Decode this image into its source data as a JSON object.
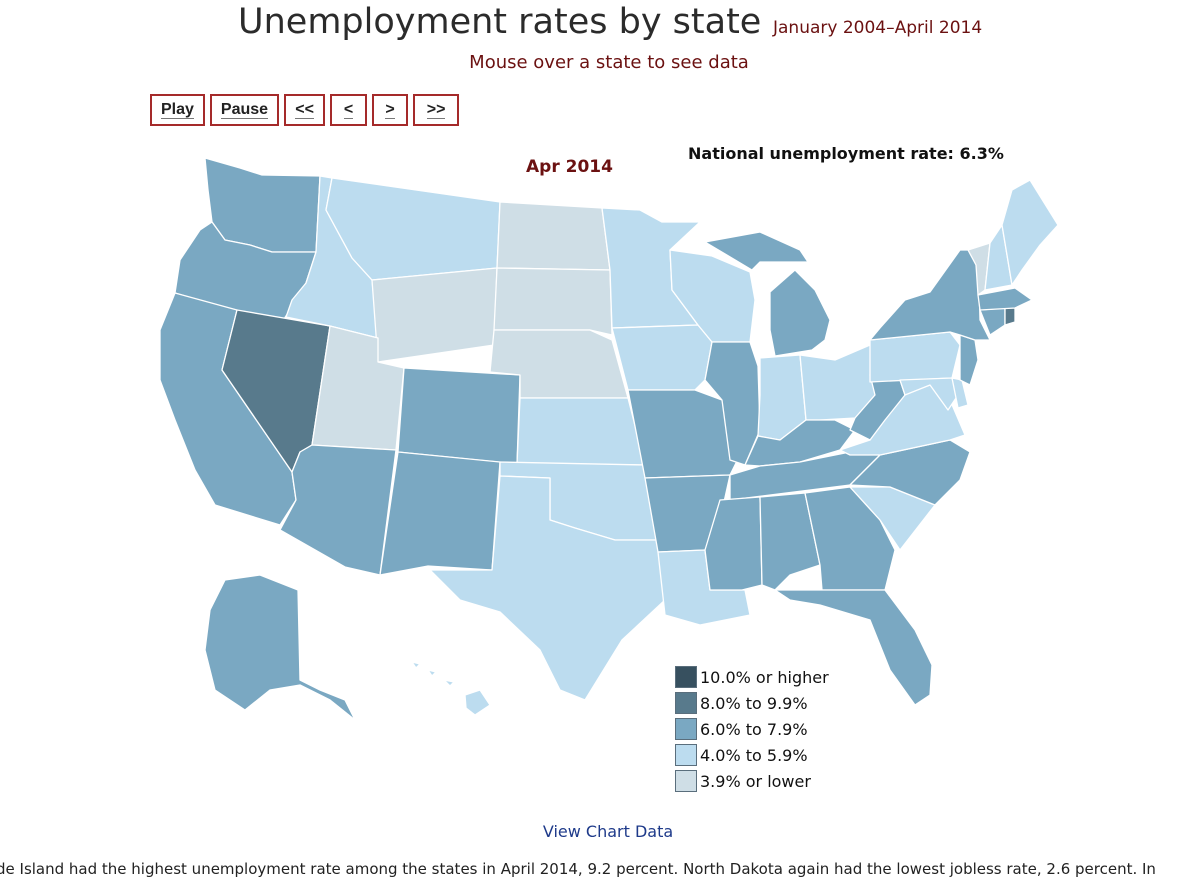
{
  "header": {
    "title": "Unemployment rates by state",
    "date_range": "January 2004–April 2014",
    "instruction": "Mouse over a state to see data"
  },
  "controls": [
    {
      "name": "play-button",
      "label": "Play"
    },
    {
      "name": "pause-button",
      "label": "Pause"
    },
    {
      "name": "first-button",
      "label": "<<"
    },
    {
      "name": "previous-button",
      "label": "<"
    },
    {
      "name": "next-button",
      "label": ">"
    },
    {
      "name": "last-button",
      "label": ">>"
    }
  ],
  "map": {
    "current_month": "Apr 2014",
    "national_rate": "National unemployment rate: 6.3%",
    "colors": {
      "10_plus": "#37505f",
      "8_to_9_9": "#587a8c",
      "6_to_7_9": "#7aa8c2",
      "4_to_5_9": "#bcdcef",
      "3_9_lower": "#cfdee6"
    },
    "state_classes": {
      "WA": "6_to_7_9",
      "OR": "6_to_7_9",
      "CA": "6_to_7_9",
      "NV": "8_to_9_9",
      "ID": "4_to_5_9",
      "MT": "4_to_5_9",
      "WY": "3_9_lower",
      "UT": "3_9_lower",
      "AZ": "6_to_7_9",
      "CO": "6_to_7_9",
      "NM": "6_to_7_9",
      "ND": "3_9_lower",
      "SD": "3_9_lower",
      "NE": "3_9_lower",
      "KS": "4_to_5_9",
      "OK": "4_to_5_9",
      "TX": "4_to_5_9",
      "MN": "4_to_5_9",
      "IA": "4_to_5_9",
      "MO": "6_to_7_9",
      "AR": "6_to_7_9",
      "LA": "4_to_5_9",
      "WI": "4_to_5_9",
      "IL": "6_to_7_9",
      "MI": "6_to_7_9",
      "IN": "4_to_5_9",
      "OH": "4_to_5_9",
      "KY": "6_to_7_9",
      "TN": "6_to_7_9",
      "MS": "6_to_7_9",
      "AL": "6_to_7_9",
      "GA": "6_to_7_9",
      "FL": "6_to_7_9",
      "SC": "4_to_5_9",
      "NC": "6_to_7_9",
      "VA": "4_to_5_9",
      "WV": "6_to_7_9",
      "PA": "4_to_5_9",
      "NY": "6_to_7_9",
      "NJ": "6_to_7_9",
      "DE": "4_to_5_9",
      "MD": "4_to_5_9",
      "CT": "6_to_7_9",
      "RI": "8_to_9_9",
      "MA": "6_to_7_9",
      "VT": "3_9_lower",
      "NH": "4_to_5_9",
      "ME": "4_to_5_9",
      "AK": "6_to_7_9",
      "HI": "4_to_5_9"
    }
  },
  "legend": [
    {
      "key": "10_plus",
      "label": "10.0% or higher"
    },
    {
      "key": "8_to_9_9",
      "label": "8.0% to 9.9%"
    },
    {
      "key": "6_to_7_9",
      "label": "6.0% to 7.9%"
    },
    {
      "key": "4_to_5_9",
      "label": "4.0% to 5.9%"
    },
    {
      "key": "3_9_lower",
      "label": "3.9% or lower"
    }
  ],
  "view_chart_data": "View Chart Data",
  "footer_text": "de Island had the highest unemployment rate among the states in April 2014, 9.2 percent. North Dakota again had the lowest jobless rate, 2.6 percent. In"
}
